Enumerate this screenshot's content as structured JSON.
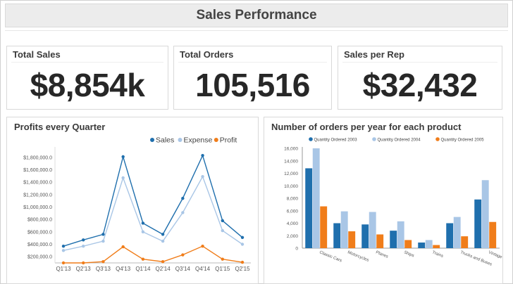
{
  "dashboard": {
    "title": "Sales Performance"
  },
  "kpis": [
    {
      "title": "Total Sales",
      "value": "$8,854k"
    },
    {
      "title": "Total Orders",
      "value": "105,516"
    },
    {
      "title": "Sales per Rep",
      "value": "$32,432"
    }
  ],
  "chart_data": [
    {
      "type": "line",
      "title": "Profits every Quarter",
      "x": [
        "Q1'13",
        "Q2'13",
        "Q3'13",
        "Q4'13",
        "Q1'14",
        "Q2'14",
        "Q3'14",
        "Q4'14",
        "Q1'15",
        "Q2'15"
      ],
      "y_ticks": [
        "$200,000.0",
        "$400,000.0",
        "$600,000.0",
        "$800,000.0",
        "$1,000,000.0",
        "$1,200,000.0",
        "$1,400,000.0",
        "$1,600,000.0",
        "$1,800,000.0"
      ],
      "ylim": [
        100000,
        1900000
      ],
      "legend_position": "top-right",
      "series": [
        {
          "name": "Sales",
          "color": "#1f6fad",
          "values": [
            370000,
            470000,
            560000,
            1810000,
            740000,
            560000,
            1140000,
            1830000,
            780000,
            510000
          ]
        },
        {
          "name": "Expense",
          "color": "#a9c6e6",
          "values": [
            300000,
            370000,
            450000,
            1470000,
            600000,
            450000,
            910000,
            1490000,
            620000,
            400000
          ]
        },
        {
          "name": "Profit",
          "color": "#f07d1a",
          "values": [
            100000,
            100000,
            120000,
            360000,
            160000,
            120000,
            230000,
            370000,
            160000,
            110000
          ]
        }
      ]
    },
    {
      "type": "bar",
      "title": "Number of orders per year for each product",
      "categories": [
        "Classic Cars",
        "Motorcycles",
        "Planes",
        "Ships",
        "Trains",
        "Trucks and Buses",
        "Vintage Cars"
      ],
      "y_ticks": [
        "0",
        "2,000",
        "4,000",
        "6,000",
        "8,000",
        "10,000",
        "12,000",
        "14,000",
        "16,000"
      ],
      "ylim": [
        0,
        16000
      ],
      "legend_position": "top",
      "series": [
        {
          "name": "Quantity Ordered 2003",
          "color": "#1f6fad",
          "values": [
            12800,
            4000,
            3800,
            2800,
            900,
            4000,
            7800
          ]
        },
        {
          "name": "Quantity Ordered 2004",
          "color": "#a9c6e6",
          "values": [
            16000,
            5900,
            5800,
            4300,
            1300,
            5000,
            10900
          ]
        },
        {
          "name": "Quantity Ordered 2005",
          "color": "#f07d1a",
          "values": [
            6700,
            2700,
            2200,
            1300,
            500,
            1900,
            4200
          ]
        }
      ]
    }
  ]
}
